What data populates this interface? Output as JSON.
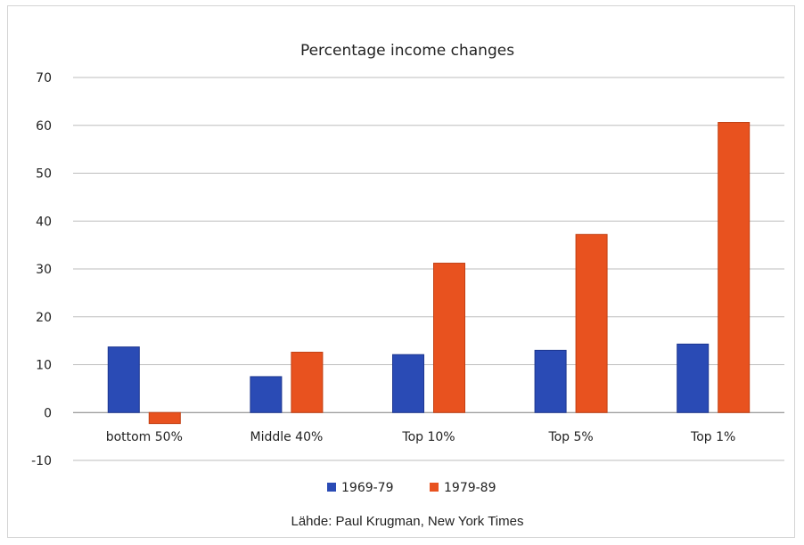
{
  "chart_data": {
    "type": "bar",
    "title": "Percentage income changes",
    "categories": [
      "bottom 50%",
      "Middle 40%",
      "Top 10%",
      "Top 5%",
      "Top 1%"
    ],
    "series": [
      {
        "name": "1969-79",
        "values": [
          13.7,
          7.5,
          12.1,
          13.0,
          14.3
        ],
        "color": "#2a4bb5"
      },
      {
        "name": "1979-89",
        "values": [
          -2.3,
          12.6,
          31.2,
          37.2,
          60.6
        ],
        "color": "#e8521f"
      }
    ],
    "ylim": [
      -10,
      70
    ],
    "yticks": [
      -10,
      0,
      10,
      20,
      30,
      40,
      50,
      60,
      70
    ],
    "xlabel": "",
    "ylabel": "",
    "grid": true,
    "legend_position": "bottom",
    "source": "Lähde: Paul Krugman, New York Times"
  }
}
